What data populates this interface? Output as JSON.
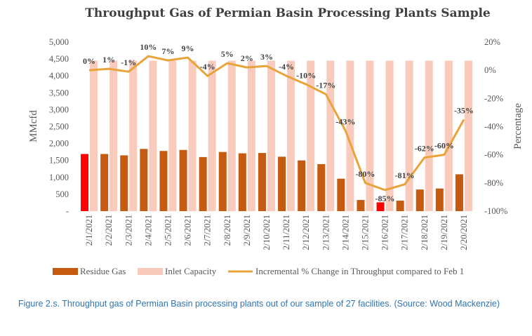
{
  "chart_data": {
    "type": "bar",
    "title": "Throughput Gas of Permian Basin Processing Plants Sample",
    "categories": [
      "2/1/2021",
      "2/2/2021",
      "2/3/2021",
      "2/4/2021",
      "2/5/2021",
      "2/6/2021",
      "2/7/2021",
      "2/8/2021",
      "2/9/2021",
      "2/10/2021",
      "2/11/2021",
      "2/12/2021",
      "2/13/2021",
      "2/14/2021",
      "2/15/2021",
      "2/16/2021",
      "2/17/2021",
      "2/18/2021",
      "2/19/2021",
      "2/20/2021"
    ],
    "ylabel": "MMcfd",
    "y2label": "Percentage",
    "ylim": [
      0,
      5000
    ],
    "y2lim": [
      -100,
      20
    ],
    "yticks": [
      "-",
      "500",
      "1,000",
      "1,500",
      "2,000",
      "2,500",
      "3,000",
      "3,500",
      "4,000",
      "4,500",
      "5,000"
    ],
    "y2ticks": [
      "-100%",
      "-80%",
      "-60%",
      "-40%",
      "-20%",
      "0%",
      "20%"
    ],
    "grid": false,
    "legend_position": "bottom",
    "series": [
      {
        "name": "Residue Gas",
        "kind": "bar",
        "color": "#c55a11",
        "first_bar_color": "#ff0000",
        "highlight_color": "#ff0000",
        "highlight_index": [
          0,
          15
        ],
        "values": [
          1690,
          1690,
          1650,
          1840,
          1780,
          1810,
          1600,
          1750,
          1710,
          1720,
          1610,
          1500,
          1390,
          960,
          330,
          260,
          310,
          640,
          670,
          1090
        ]
      },
      {
        "name": "Inlet Capacity",
        "kind": "bar",
        "color": "#f8cbbd",
        "values": [
          4450,
          4450,
          4450,
          4450,
          4450,
          4450,
          4450,
          4450,
          4450,
          4450,
          4450,
          4450,
          4450,
          4450,
          4450,
          4450,
          4450,
          4450,
          4450,
          4450
        ]
      },
      {
        "name": "Incremental % Change in Throughput compared to Feb 1",
        "kind": "line",
        "axis": "secondary",
        "color": "#e8a33a",
        "values": [
          0,
          1,
          -1,
          10,
          7,
          9,
          -4,
          5,
          2,
          3,
          -4,
          -10,
          -17,
          -43,
          -80,
          -85,
          -81,
          -62,
          -60,
          -35
        ],
        "labels": [
          "0%",
          "1%",
          "-1%",
          "10%",
          "7%",
          "9%",
          "-4%",
          "5%",
          "2%",
          "3%",
          "-4%",
          "-10%",
          "-17%",
          "-43%",
          "-80%",
          "-85%",
          "-81%",
          "-62%",
          "-60%",
          "-35%"
        ]
      }
    ]
  },
  "caption": "Figure 2.s. Throughput gas of Permian Basin processing plants out of our sample of 27 facilities. (Source: Wood Mackenzie)"
}
